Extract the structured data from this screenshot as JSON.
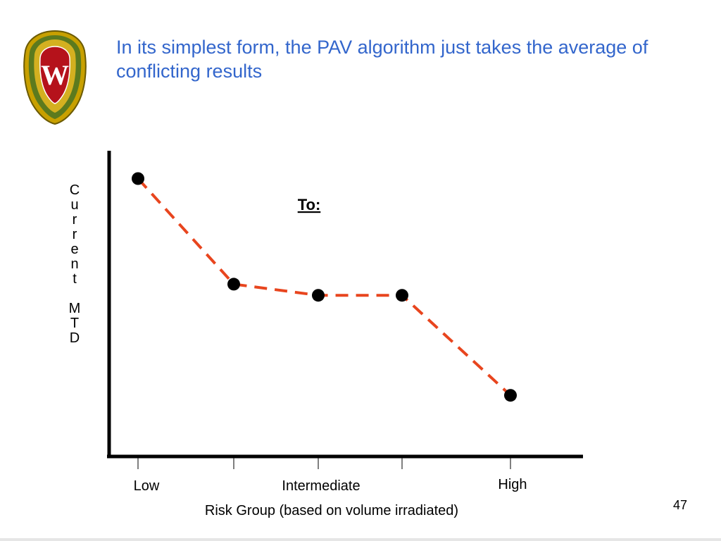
{
  "slide": {
    "title": "In its simplest form, the PAV algorithm just takes the average of conflicting results",
    "page_number": "47",
    "logo": {
      "name": "University of Wisconsin crest",
      "letter": "W",
      "colors": {
        "shield": "#b5121b",
        "frame": "#c8a000",
        "green": "#5c7a1e"
      }
    }
  },
  "chart_data": {
    "type": "line",
    "title": "",
    "annotation": "To:",
    "xlabel": "Risk Group (based on volume irradiated)",
    "ylabel": "Current MTD",
    "categories": [
      "Low",
      "",
      "Intermediate",
      "",
      "High"
    ],
    "tick_labels": [
      "Low",
      "Intermediate",
      "High"
    ],
    "series": [
      {
        "values": [
          10,
          6.2,
          5.8,
          5.8,
          2.2
        ]
      }
    ],
    "ylim": [
      0,
      11
    ],
    "grid": false,
    "legend": "none",
    "colors": {
      "line": "#e8451e",
      "marker": "#000000",
      "axis": "#000000"
    }
  }
}
